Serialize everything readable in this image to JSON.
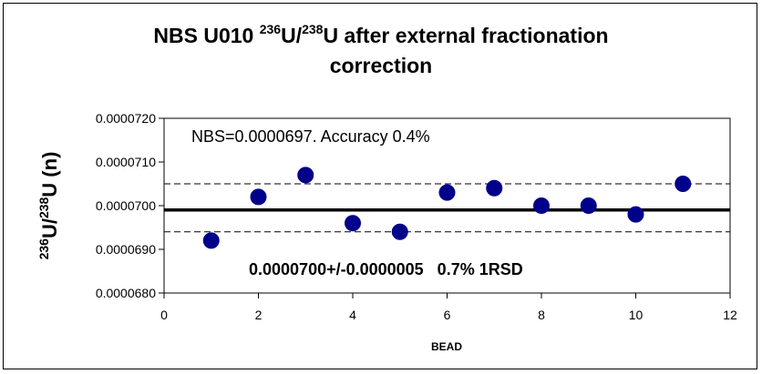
{
  "chart_data": {
    "type": "scatter",
    "title": {
      "prefix": "NBS U010 ",
      "sup1": "236",
      "mid": "U/",
      "sup2": "238",
      "suffix": "U after external fractionation",
      "line2": "correction"
    },
    "xlabel": "BEAD",
    "ylabel": {
      "sup1": "236",
      "mid": "U/",
      "sup2": "238",
      "suffix": "U (n)"
    },
    "xlim": [
      0,
      12
    ],
    "ylim": [
      6.8e-05,
      7.2e-05
    ],
    "x_ticks": [
      0,
      2,
      4,
      6,
      8,
      10,
      12
    ],
    "x_tick_labels": [
      "0",
      "2",
      "4",
      "6",
      "8",
      "10",
      "12"
    ],
    "y_ticks": [
      6.8e-05,
      6.9e-05,
      7e-05,
      7.1e-05,
      7.2e-05
    ],
    "y_tick_labels": [
      "0.0000680",
      "0.0000690",
      "0.0000700",
      "0.0000710",
      "0.0000720"
    ],
    "series": [
      {
        "x": [
          1,
          2,
          3,
          4,
          5,
          6,
          7,
          8,
          9,
          10,
          11
        ],
        "y": [
          6.92e-05,
          7.02e-05,
          7.07e-05,
          6.96e-05,
          6.94e-05,
          7.03e-05,
          7.04e-05,
          7e-05,
          7e-05,
          6.98e-05,
          7.05e-05
        ],
        "color": "#00008B"
      }
    ],
    "mean_line": 6.99e-05,
    "bound_lines": [
      7.05e-05,
      6.94e-05
    ],
    "annotations": [
      "NBS=0.0000697. Accuracy 0.4%",
      "0.0000700+/-0.0000005   0.7% 1RSD"
    ],
    "grid": false
  }
}
